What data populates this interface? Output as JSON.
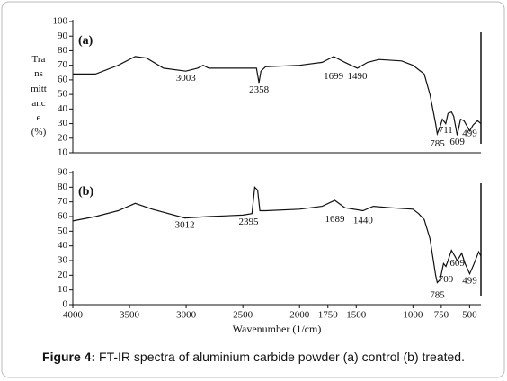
{
  "chart_data": [
    {
      "type": "line",
      "label": "(a)",
      "ylabel": "Transmittance (%)",
      "xlim": [
        4000,
        400
      ],
      "ylim": [
        10,
        100
      ],
      "yticks": [
        10,
        20,
        30,
        40,
        50,
        60,
        70,
        80,
        90,
        100
      ],
      "series": [
        {
          "name": "control",
          "color": "#111111",
          "x": [
            4000,
            3800,
            3600,
            3450,
            3350,
            3200,
            3003,
            2900,
            2850,
            2800,
            2500,
            2380,
            2358,
            2340,
            2300,
            2000,
            1800,
            1699,
            1600,
            1490,
            1400,
            1300,
            1100,
            1000,
            950,
            900,
            850,
            800,
            785,
            760,
            740,
            711,
            690,
            660,
            640,
            609,
            580,
            550,
            499,
            470,
            430,
            400
          ],
          "values": [
            64,
            64,
            70,
            76,
            75,
            68,
            66,
            68,
            70,
            68,
            68,
            68,
            58,
            66,
            69,
            70,
            72,
            76,
            72,
            68,
            72,
            74,
            73,
            70,
            67,
            64,
            50,
            30,
            23,
            28,
            33,
            30,
            37,
            38,
            35,
            22,
            33,
            32,
            25,
            29,
            32,
            30
          ]
        }
      ],
      "annotations": [
        {
          "text": "3003",
          "x": 3003,
          "y": 61
        },
        {
          "text": "2358",
          "x": 2358,
          "y": 53
        },
        {
          "text": "1699",
          "x": 1699,
          "y": 62
        },
        {
          "text": "1490",
          "x": 1490,
          "y": 62
        },
        {
          "text": "785",
          "x": 785,
          "y": 16
        },
        {
          "text": "711",
          "x": 711,
          "y": 25
        },
        {
          "text": "609",
          "x": 609,
          "y": 17
        },
        {
          "text": "499",
          "x": 499,
          "y": 23
        }
      ]
    },
    {
      "type": "line",
      "label": "(b)",
      "xlabel": "Wavenumber (1/cm)",
      "xlim": [
        4000,
        400
      ],
      "xticks": [
        4000,
        3500,
        3000,
        2500,
        2000,
        1750,
        1500,
        1000,
        750,
        500
      ],
      "ylim": [
        0,
        90
      ],
      "yticks": [
        0,
        10,
        20,
        30,
        40,
        50,
        60,
        70,
        80,
        90
      ],
      "series": [
        {
          "name": "treated",
          "color": "#111111",
          "x": [
            4000,
            3800,
            3600,
            3450,
            3300,
            3012,
            2800,
            2500,
            2420,
            2395,
            2370,
            2350,
            2300,
            2000,
            1800,
            1689,
            1600,
            1440,
            1350,
            1200,
            1000,
            950,
            900,
            850,
            800,
            785,
            760,
            730,
            709,
            690,
            660,
            630,
            609,
            570,
            540,
            499,
            460,
            420,
            400
          ],
          "values": [
            57,
            60,
            64,
            69,
            65,
            59,
            60,
            61,
            62,
            80,
            78,
            64,
            64,
            65,
            67,
            71,
            66,
            64,
            67,
            66,
            65,
            62,
            58,
            45,
            20,
            15,
            17,
            28,
            26,
            30,
            37,
            33,
            30,
            35,
            28,
            21,
            28,
            36,
            33
          ]
        }
      ],
      "annotations": [
        {
          "text": "3012",
          "x": 3012,
          "y": 54
        },
        {
          "text": "2395",
          "x": 2450,
          "y": 56
        },
        {
          "text": "1689",
          "x": 1689,
          "y": 58
        },
        {
          "text": "1440",
          "x": 1440,
          "y": 57
        },
        {
          "text": "785",
          "x": 785,
          "y": 6
        },
        {
          "text": "709",
          "x": 709,
          "y": 17
        },
        {
          "text": "609",
          "x": 609,
          "y": 28
        },
        {
          "text": "499",
          "x": 499,
          "y": 16
        }
      ]
    }
  ],
  "caption": {
    "label": "Figure 4:",
    "text": "FT-IR spectra of aluminium carbide powder (a) control (b) treated."
  }
}
